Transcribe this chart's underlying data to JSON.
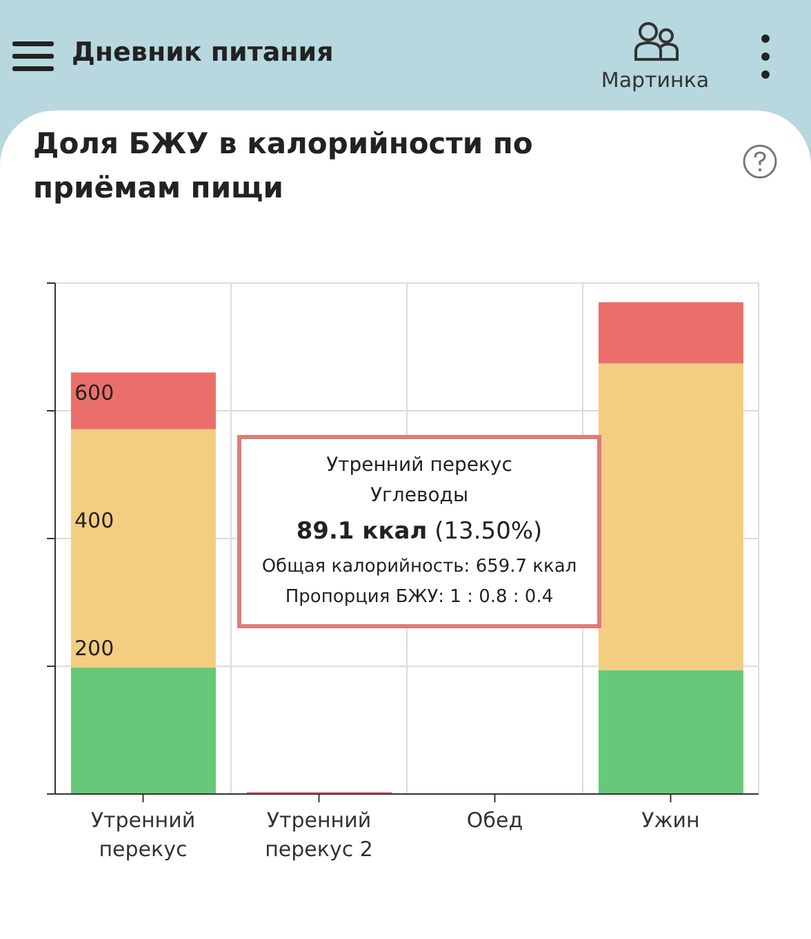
{
  "chart_data": {
    "type": "bar",
    "title": "Доля БЖУ в калорийности по приёмам пищи",
    "categories": [
      "Утренний перекус",
      "Утренний перекус 2",
      "Обед",
      "Ужин"
    ],
    "series": [
      {
        "color": "#66c878",
        "values": [
          198,
          0,
          0,
          194
        ]
      },
      {
        "color": "#f3cd80",
        "values": [
          373,
          0,
          0,
          480
        ]
      },
      {
        "color": "#ea6f6a",
        "values": [
          89,
          3,
          0,
          96
        ]
      }
    ],
    "stacked": true,
    "ylim": [
      0,
      800
    ],
    "yticks": [
      {
        "value": 0,
        "label": null
      },
      200,
      400,
      600,
      {
        "value": 800,
        "label": null
      }
    ],
    "grid": true,
    "annotations": [
      "Утренний перекус",
      "Углеводы",
      "89.1 ккал",
      "(13.50%)",
      "Общая калорийность: 659.7 ккал",
      "Пропорция БЖУ: 1 : 0.8 : 0.4",
      "Дневник питания",
      "Мартинка"
    ]
  }
}
